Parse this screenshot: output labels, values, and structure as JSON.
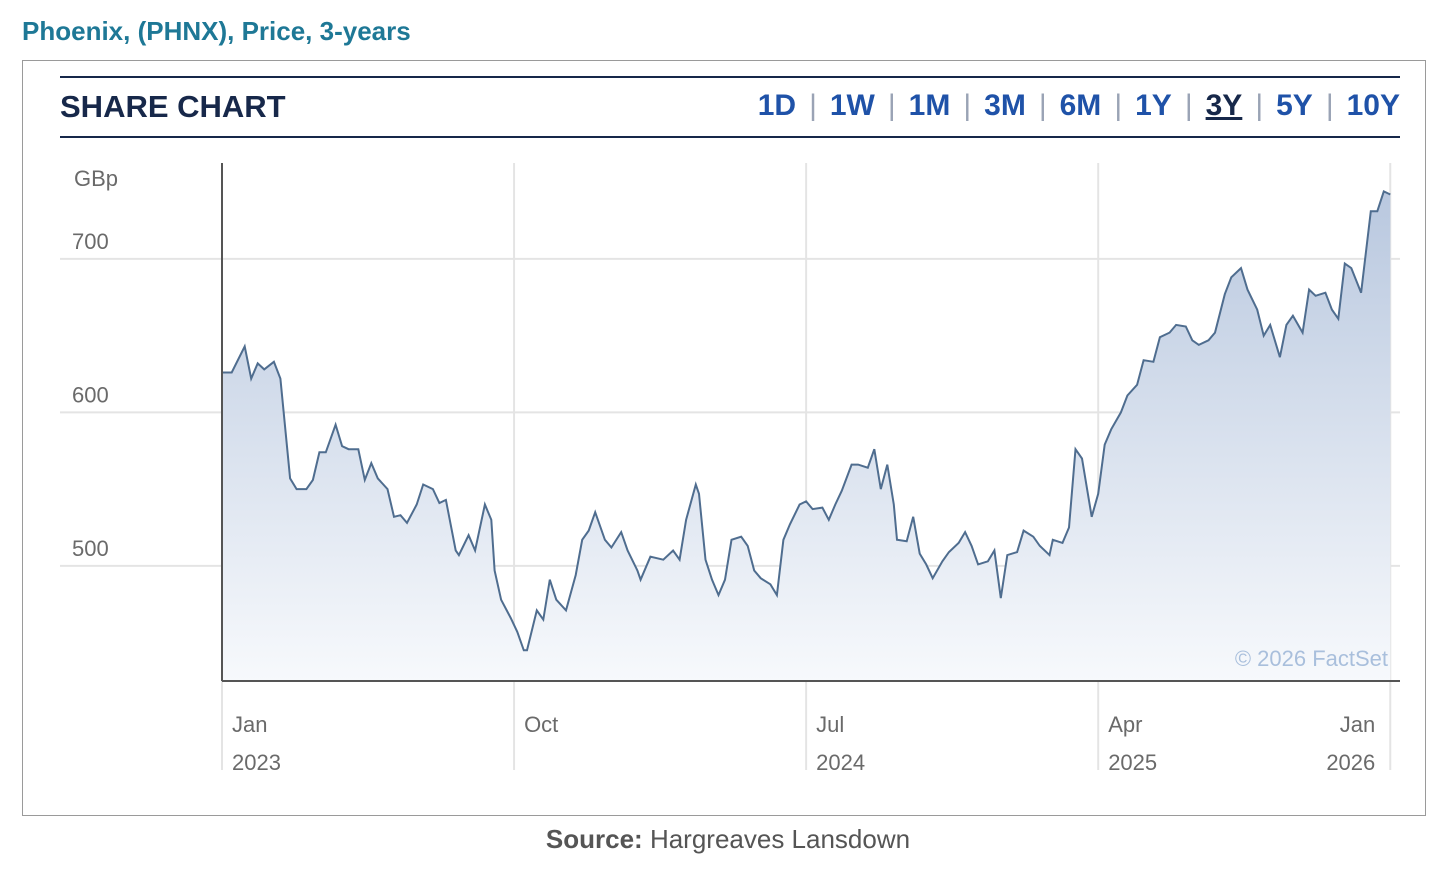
{
  "page": {
    "title": "Phoenix, (PHNX), Price, 3-years",
    "widget_title": "SHARE CHART",
    "ranges": [
      "1D",
      "1W",
      "1M",
      "3M",
      "6M",
      "1Y",
      "3Y",
      "5Y",
      "10Y"
    ],
    "active_range": 6,
    "source_label": "Source:",
    "source_text": "Hargreaves Lansdown"
  },
  "chart_data": {
    "type": "area",
    "y_label": "GBp",
    "annotation": "© 2026 FactSet",
    "grid": true,
    "xlim": [
      0,
      36.3
    ],
    "xticks": [
      {
        "value": 0,
        "label": "Jan\n2023"
      },
      {
        "value": 9,
        "label": "Oct"
      },
      {
        "value": 18,
        "label": "Jul\n2024"
      },
      {
        "value": 27,
        "label": "Apr\n2025"
      },
      {
        "value": 36,
        "label": "Jan\n2026"
      }
    ],
    "ylim": [
      425,
      762.5
    ],
    "yticks": [
      500,
      600,
      700
    ],
    "x": [
      0,
      0.3,
      0.7,
      0.9,
      1.1,
      1.3,
      1.6,
      1.8,
      2.1,
      2.3,
      2.6,
      2.8,
      3.0,
      3.2,
      3.5,
      3.7,
      3.9,
      4.2,
      4.4,
      4.6,
      4.8,
      5.1,
      5.3,
      5.5,
      5.7,
      6.0,
      6.2,
      6.5,
      6.7,
      6.9,
      7.2,
      7.3,
      7.6,
      7.8,
      8.1,
      8.3,
      8.4,
      8.6,
      8.9,
      9.1,
      9.3,
      9.4,
      9.7,
      9.9,
      10.1,
      10.3,
      10.6,
      10.9,
      11.1,
      11.3,
      11.5,
      11.8,
      12.0,
      12.3,
      12.5,
      12.8,
      12.9,
      13.2,
      13.4,
      13.6,
      13.9,
      14.1,
      14.3,
      14.6,
      14.7,
      14.9,
      15.1,
      15.3,
      15.5,
      15.7,
      16.0,
      16.2,
      16.4,
      16.6,
      16.9,
      17.1,
      17.3,
      17.5,
      17.8,
      18.0,
      18.2,
      18.5,
      18.7,
      18.9,
      19.1,
      19.4,
      19.6,
      19.9,
      20.1,
      20.3,
      20.5,
      20.7,
      20.8,
      21.1,
      21.3,
      21.5,
      21.7,
      21.9,
      22.2,
      22.4,
      22.7,
      22.9,
      23.1,
      23.3,
      23.6,
      23.8,
      24.0,
      24.2,
      24.5,
      24.7,
      25.0,
      25.2,
      25.5,
      25.6,
      25.9,
      26.1,
      26.3,
      26.5,
      26.8,
      27.0,
      27.2,
      27.4,
      27.7,
      27.9,
      28.2,
      28.4,
      28.7,
      28.9,
      29.2,
      29.4,
      29.7,
      29.9,
      30.1,
      30.4,
      30.6,
      30.9,
      31.1,
      31.4,
      31.6,
      31.9,
      32.1,
      32.3,
      32.6,
      32.8,
      33.0,
      33.3,
      33.5,
      33.7,
      34.0,
      34.2,
      34.4,
      34.6,
      34.8,
      35.1,
      35.4,
      35.6,
      35.8,
      36.0
    ],
    "series": [
      {
        "color": "#4f6d8f",
        "values": [
          626,
          626,
          643,
          622,
          632,
          628,
          633,
          622,
          557,
          550,
          550,
          556,
          574,
          574,
          592,
          578,
          576,
          576,
          556,
          567,
          557,
          550,
          532,
          533,
          528,
          540,
          553,
          550,
          541,
          543,
          510,
          507,
          520,
          510,
          540,
          530,
          497,
          478,
          466,
          457,
          445,
          445,
          471,
          465,
          491,
          478,
          471,
          494,
          517,
          523,
          535,
          517,
          512,
          522,
          510,
          497,
          491,
          506,
          505,
          504,
          510,
          504,
          530,
          553,
          547,
          504,
          491,
          481,
          491,
          517,
          519,
          513,
          497,
          492,
          488,
          481,
          517,
          527,
          540,
          542,
          537,
          538,
          530,
          540,
          549,
          566,
          566,
          564,
          576,
          550,
          566,
          540,
          517,
          516,
          532,
          508,
          501,
          492,
          503,
          509,
          515,
          522,
          513,
          501,
          503,
          510,
          479,
          507,
          509,
          523,
          519,
          513,
          507,
          517,
          515,
          525,
          576,
          570,
          532,
          547,
          579,
          589,
          600,
          611,
          618,
          634,
          633,
          649,
          652,
          657,
          656,
          647,
          644,
          647,
          652,
          677,
          688,
          694,
          680,
          667,
          650,
          657,
          636,
          657,
          663,
          652,
          680,
          676,
          678,
          667,
          661,
          697,
          694,
          678,
          731,
          731,
          744,
          742
        ]
      }
    ]
  }
}
